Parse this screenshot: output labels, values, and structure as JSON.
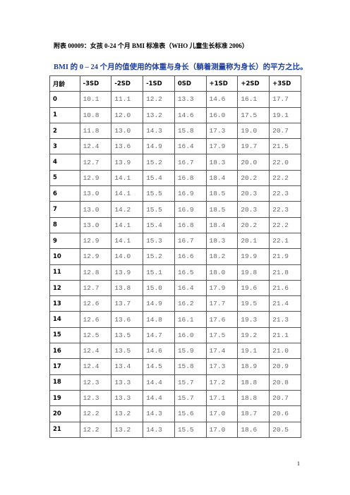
{
  "header": {
    "title": "附表 00009：女孩 0-24 个月 BMI 标准表（WHO 儿童生长标准 2006）",
    "subtitle": "BMI 的 0 – 24 个月的值使用的体重与身长（躺着测量称为身长）的平方之比。"
  },
  "table": {
    "columns": [
      "月龄",
      "-3SD",
      "-2SD",
      "-1SD",
      "0SD",
      "+1SD",
      "+2SD",
      "+3SD"
    ],
    "rows": [
      [
        "0",
        "10.1",
        "11.1",
        "12.2",
        "13.3",
        "14.6",
        "16.1",
        "17.7"
      ],
      [
        "1",
        "10.8",
        "12.0",
        "13.2",
        "14.6",
        "16.0",
        "17.5",
        "19.1"
      ],
      [
        "2",
        "11.8",
        "13.0",
        "14.3",
        "15.8",
        "17.3",
        "19.0",
        "20.7"
      ],
      [
        "3",
        "12.4",
        "13.6",
        "14.9",
        "16.4",
        "17.9",
        "19.7",
        "21.5"
      ],
      [
        "4",
        "12.7",
        "13.9",
        "15.2",
        "16.7",
        "18.3",
        "20.0",
        "22.0"
      ],
      [
        "5",
        "12.9",
        "14.1",
        "15.4",
        "16.8",
        "18.4",
        "20.2",
        "22.2"
      ],
      [
        "6",
        "13.0",
        "14.1",
        "15.5",
        "16.9",
        "18.5",
        "20.3",
        "22.3"
      ],
      [
        "7",
        "13.0",
        "14.2",
        "15.5",
        "16.9",
        "18.5",
        "20.3",
        "22.3"
      ],
      [
        "8",
        "13.0",
        "14.1",
        "15.4",
        "16.8",
        "18.4",
        "20.2",
        "22.2"
      ],
      [
        "9",
        "12.9",
        "14.1",
        "15.3",
        "16.7",
        "18.3",
        "20.1",
        "22.1"
      ],
      [
        "10",
        "12.9",
        "14.0",
        "15.2",
        "16.6",
        "18.2",
        "19.9",
        "21.9"
      ],
      [
        "11",
        "12.8",
        "13.9",
        "15.1",
        "16.5",
        "18.0",
        "19.8",
        "21.8"
      ],
      [
        "12",
        "12.7",
        "13.8",
        "15.0",
        "16.4",
        "17.9",
        "19.6",
        "21.6"
      ],
      [
        "13",
        "12.6",
        "13.7",
        "14.9",
        "16.2",
        "17.7",
        "19.5",
        "21.4"
      ],
      [
        "14",
        "12.6",
        "13.6",
        "14.8",
        "16.1",
        "17.6",
        "19.3",
        "21.3"
      ],
      [
        "15",
        "12.5",
        "13.5",
        "14.7",
        "16.0",
        "17.5",
        "19.2",
        "21.1"
      ],
      [
        "16",
        "12.4",
        "13.5",
        "14.6",
        "15.9",
        "17.4",
        "19.1",
        "21.0"
      ],
      [
        "17",
        "12.4",
        "13.4",
        "14.5",
        "15.8",
        "17.3",
        "18.9",
        "20.9"
      ],
      [
        "18",
        "12.3",
        "13.3",
        "14.4",
        "15.7",
        "17.2",
        "18.8",
        "20.8"
      ],
      [
        "19",
        "12.3",
        "13.3",
        "14.4",
        "15.7",
        "17.1",
        "18.8",
        "20.7"
      ],
      [
        "20",
        "12.2",
        "13.2",
        "14.3",
        "15.6",
        "17.0",
        "18.7",
        "20.6"
      ],
      [
        "21",
        "12.2",
        "13.2",
        "14.3",
        "15.5",
        "17.0",
        "18.6",
        "20.5"
      ]
    ]
  },
  "footer": {
    "page_number": "1"
  }
}
